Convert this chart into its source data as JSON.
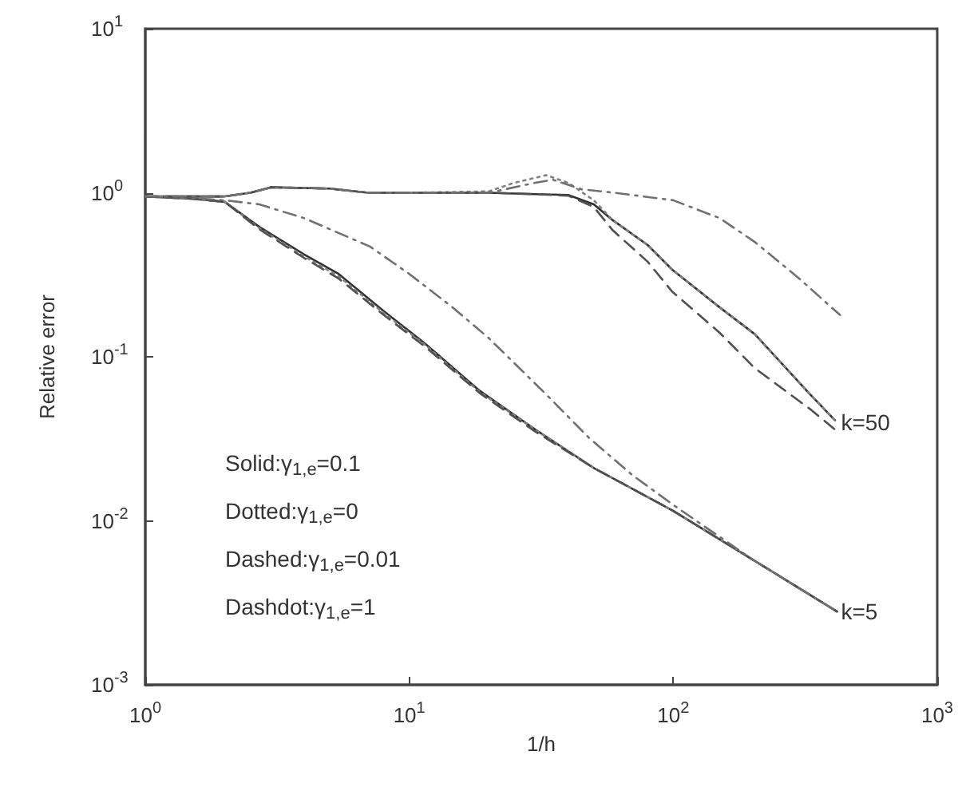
{
  "chart_data": {
    "type": "line",
    "xlabel": "1/h",
    "ylabel": "Relative error",
    "log": "xy",
    "grid": false,
    "legend": false,
    "marker": "none",
    "xlim": [
      1,
      1000
    ],
    "ylim": [
      0.001,
      10
    ],
    "xticks": [
      {
        "value": 1,
        "label": "10$^{0}$"
      },
      {
        "value": 10,
        "label": "10$^{1}$"
      },
      {
        "value": 100,
        "label": "10$^{2}$"
      },
      {
        "value": 1000,
        "label": "10$^{3}$"
      }
    ],
    "yticks": [
      {
        "value": 0.001,
        "label": "10$^{-3}$"
      },
      {
        "value": 0.01,
        "label": "10$^{-2}$"
      },
      {
        "value": 0.1,
        "label": "10$^{-1}$"
      },
      {
        "value": 1,
        "label": "10$^{0}$"
      },
      {
        "value": 10,
        "label": "10$^{1}$"
      }
    ],
    "series": [
      {
        "color": "#303030",
        "line_style": "solid",
        "x": [
          1,
          1.5,
          2,
          2.7,
          4,
          5.4,
          8,
          11.5,
          18.5,
          30,
          50,
          100,
          200,
          417
        ],
        "values": [
          0.95,
          0.92,
          0.88,
          0.62,
          0.42,
          0.32,
          0.19,
          0.12,
          0.062,
          0.036,
          0.021,
          0.0115,
          0.0058,
          0.0028
        ]
      },
      {
        "color": "#808080",
        "line_style": "dotted",
        "x": [
          1,
          1.5,
          2,
          2.7,
          4,
          5.4,
          8,
          11.5,
          18.5,
          30,
          50,
          100,
          200,
          417
        ],
        "values": [
          0.95,
          0.92,
          0.88,
          0.61,
          0.41,
          0.31,
          0.185,
          0.118,
          0.061,
          0.036,
          0.021,
          0.0115,
          0.0058,
          0.0028
        ]
      },
      {
        "color": "#505050",
        "line_style": "dashed",
        "x": [
          1,
          1.5,
          2,
          2.7,
          4,
          5.4,
          8,
          11.5,
          18.5,
          30,
          50,
          100,
          200,
          417
        ],
        "values": [
          0.95,
          0.92,
          0.88,
          0.6,
          0.4,
          0.3,
          0.18,
          0.115,
          0.06,
          0.035,
          0.021,
          0.0115,
          0.0058,
          0.0028
        ]
      },
      {
        "color": "#707070",
        "line_style": "dashdot",
        "x": [
          1,
          1.5,
          2,
          2.7,
          4,
          7.1,
          10,
          14.6,
          20,
          33,
          48,
          70,
          100,
          200,
          417
        ],
        "values": [
          0.95,
          0.93,
          0.9,
          0.85,
          0.7,
          0.47,
          0.32,
          0.2,
          0.13,
          0.059,
          0.032,
          0.019,
          0.0125,
          0.0058,
          0.0028
        ]
      },
      {
        "color": "#303030",
        "line_style": "solid",
        "x": [
          1,
          2,
          2.5,
          3,
          5,
          7,
          10,
          20,
          30,
          40,
          50,
          59,
          80,
          99,
          150,
          204,
          330,
          410
        ],
        "values": [
          0.95,
          0.95,
          1.0,
          1.08,
          1.06,
          1.0,
          1.0,
          1.0,
          0.98,
          0.97,
          0.85,
          0.68,
          0.48,
          0.34,
          0.2,
          0.137,
          0.059,
          0.041
        ]
      },
      {
        "color": "#808080",
        "line_style": "dotted",
        "x": [
          1,
          2,
          2.5,
          3,
          5,
          7,
          10,
          20,
          25,
          33,
          40,
          50,
          59,
          80,
          99,
          150,
          204,
          330,
          410
        ],
        "values": [
          0.95,
          0.95,
          1.0,
          1.08,
          1.06,
          1.0,
          1.0,
          1.02,
          1.15,
          1.28,
          1.15,
          0.9,
          0.68,
          0.48,
          0.34,
          0.2,
          0.137,
          0.059,
          0.041
        ]
      },
      {
        "color": "#505050",
        "line_style": "dashed",
        "x": [
          1,
          2,
          2.5,
          3,
          5,
          7,
          10,
          20,
          30,
          40,
          50,
          59,
          80,
          99,
          150,
          204,
          330,
          410
        ],
        "values": [
          0.95,
          0.95,
          1.0,
          1.08,
          1.06,
          1.0,
          1.0,
          1.0,
          0.98,
          0.96,
          0.82,
          0.59,
          0.38,
          0.25,
          0.14,
          0.085,
          0.048,
          0.036
        ]
      },
      {
        "color": "#707070",
        "line_style": "dashdot",
        "x": [
          1,
          2,
          2.5,
          3,
          5,
          7,
          10,
          20,
          30,
          35,
          45,
          60,
          100,
          150,
          204,
          300,
          428
        ],
        "values": [
          0.95,
          0.95,
          1.0,
          1.08,
          1.06,
          1.0,
          1.0,
          1.0,
          1.15,
          1.2,
          1.05,
          1.0,
          0.9,
          0.7,
          0.5,
          0.3,
          0.18
        ]
      }
    ],
    "annotations": [
      {
        "text": "k=50",
        "x": 420,
        "y": 0.04
      },
      {
        "text": "k=5",
        "x": 420,
        "y": 0.0028
      },
      "Solid:γ$_{1,e}$=0.1",
      "Dotted:γ$_{1,e}$=0",
      "Dashed:γ$_{1,e}$=0.01",
      "Dashdot:γ$_{1,e}$=1"
    ]
  }
}
